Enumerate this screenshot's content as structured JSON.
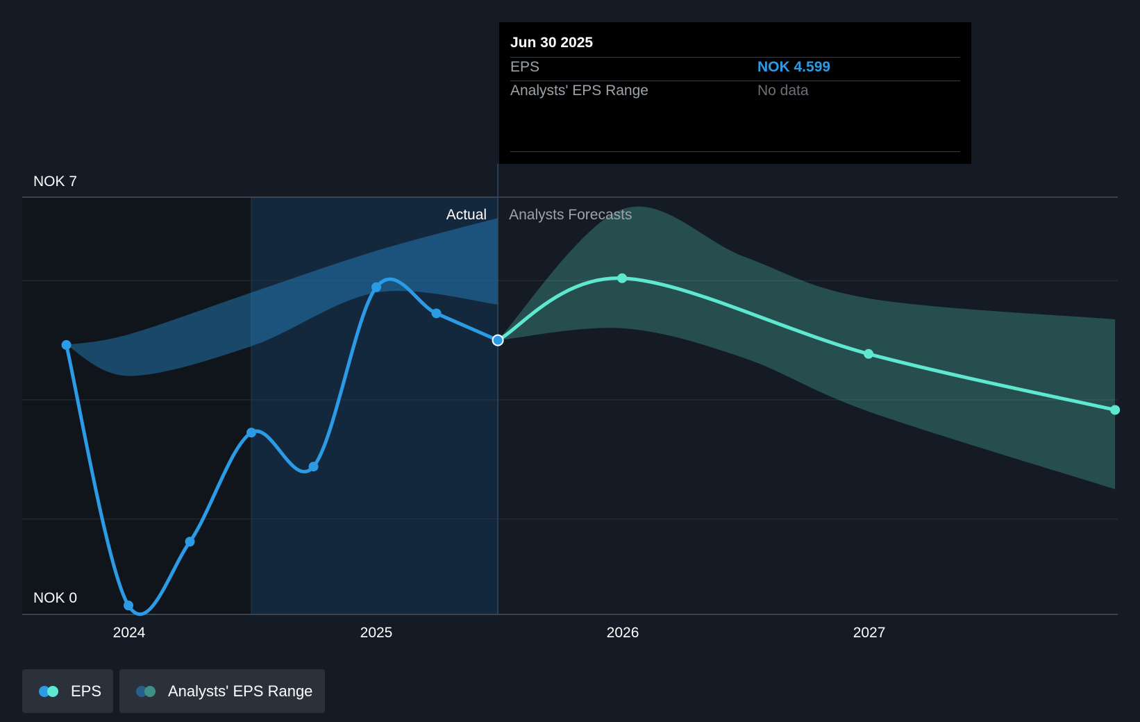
{
  "chart_data": {
    "type": "line",
    "y_axis": {
      "labels": [
        "NOK 7",
        "NOK 0"
      ],
      "ylim": [
        0,
        7
      ]
    },
    "x_axis": {
      "ticks": [
        "2024",
        "2025",
        "2026",
        "2027"
      ]
    },
    "section_labels": {
      "actual": "Actual",
      "forecast": "Analysts Forecasts"
    },
    "series": [
      {
        "name": "EPS",
        "role": "actual",
        "color": "#2b9be6",
        "points": [
          {
            "x": "2023-09-30",
            "y": 4.52
          },
          {
            "x": "2023-12-31",
            "y": 0.15
          },
          {
            "x": "2024-03-31",
            "y": 1.22
          },
          {
            "x": "2024-06-30",
            "y": 3.05
          },
          {
            "x": "2024-09-30",
            "y": 2.48
          },
          {
            "x": "2025-01-01",
            "y": 5.49
          },
          {
            "x": "2025-03-31",
            "y": 5.05
          },
          {
            "x": "2025-06-30",
            "y": 4.599
          }
        ]
      },
      {
        "name": "EPS",
        "role": "forecast",
        "color": "#5ee8d0",
        "points": [
          {
            "x": "2025-06-30",
            "y": 4.599
          },
          {
            "x": "2025-12-31",
            "y": 5.64
          },
          {
            "x": "2026-12-31",
            "y": 4.37
          },
          {
            "x": "2027-12-31",
            "y": 3.43
          }
        ]
      }
    ],
    "actual_range_band": {
      "color": "#2b9be6",
      "upper": [
        {
          "x": "2023-09-30",
          "y": 4.52
        },
        {
          "x": "2024-01-01",
          "y": 4.7
        },
        {
          "x": "2024-06-30",
          "y": 5.4
        },
        {
          "x": "2025-01-01",
          "y": 6.1
        },
        {
          "x": "2025-06-30",
          "y": 6.65
        }
      ],
      "lower": [
        {
          "x": "2023-09-30",
          "y": 4.52
        },
        {
          "x": "2024-01-01",
          "y": 4.0
        },
        {
          "x": "2024-06-30",
          "y": 4.5
        },
        {
          "x": "2025-01-01",
          "y": 5.4
        },
        {
          "x": "2025-06-30",
          "y": 5.2
        }
      ]
    },
    "forecast_range_band": {
      "name": "Analysts' EPS Range",
      "color": "#5ee8d0",
      "upper": [
        {
          "x": "2025-06-30",
          "y": 4.599
        },
        {
          "x": "2026-01-01",
          "y": 6.8
        },
        {
          "x": "2026-06-30",
          "y": 6.0
        },
        {
          "x": "2027-01-01",
          "y": 5.3
        },
        {
          "x": "2027-12-31",
          "y": 4.95
        }
      ],
      "lower": [
        {
          "x": "2025-06-30",
          "y": 4.599
        },
        {
          "x": "2026-01-01",
          "y": 4.8
        },
        {
          "x": "2026-06-30",
          "y": 4.3
        },
        {
          "x": "2027-01-01",
          "y": 3.4
        },
        {
          "x": "2027-12-31",
          "y": 2.1
        }
      ]
    },
    "grid": true,
    "legend": [
      "EPS",
      "Analysts' EPS Range"
    ]
  },
  "tooltip": {
    "date": "Jun 30 2025",
    "eps_label": "EPS",
    "eps_value": "NOK 4.599",
    "range_label": "Analysts' EPS Range",
    "range_value": "No data"
  },
  "legend": {
    "eps_label": "EPS",
    "range_label": "Analysts' EPS Range"
  },
  "colors": {
    "background": "#151b24",
    "actual": "#2b9be6",
    "forecast": "#5ee8d0",
    "past_shade": "#11161d"
  }
}
